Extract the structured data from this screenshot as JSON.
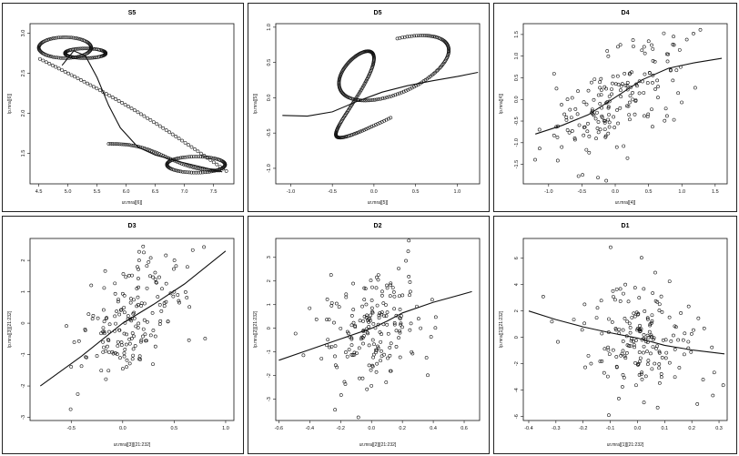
{
  "chart_data": [
    {
      "type": "scatter",
      "title": "S5",
      "xlabel": "ur.mra[[6]]",
      "ylabel": "lp.mra[[6]]",
      "xlim": [
        4.35,
        7.85
      ],
      "ylim": [
        1.12,
        3.12
      ],
      "xticks": [
        "4.5",
        "5.0",
        "5.5",
        "6.0",
        "6.5",
        "7.0",
        "7.5"
      ],
      "yticks": [
        "1.5",
        "2.0",
        "2.5",
        "3.0"
      ],
      "curve": "S5",
      "smoother": [
        [
          4.9,
          2.6
        ],
        [
          5.1,
          2.78
        ],
        [
          5.3,
          2.72
        ],
        [
          5.5,
          2.45
        ],
        [
          5.7,
          2.1
        ],
        [
          5.9,
          1.82
        ],
        [
          6.2,
          1.58
        ],
        [
          6.5,
          1.48
        ],
        [
          6.9,
          1.4
        ],
        [
          7.3,
          1.33
        ],
        [
          7.65,
          1.27
        ]
      ]
    },
    {
      "type": "scatter",
      "title": "D5",
      "xlabel": "ur.mra[[5]]",
      "ylabel": "lp.mra[[5]]",
      "xlim": [
        -1.18,
        1.27
      ],
      "ylim": [
        -1.22,
        1.05
      ],
      "xticks": [
        "-1.0",
        "-0.5",
        "0.0",
        "0.5",
        "1.0"
      ],
      "yticks": [
        "-1.0",
        "-0.5",
        "0.0",
        "0.5",
        "1.0"
      ],
      "curve": "D5",
      "smoother": [
        [
          -1.1,
          -0.25
        ],
        [
          -0.8,
          -0.26
        ],
        [
          -0.5,
          -0.2
        ],
        [
          -0.2,
          -0.05
        ],
        [
          0.1,
          0.08
        ],
        [
          0.4,
          0.17
        ],
        [
          0.7,
          0.24
        ],
        [
          1.0,
          0.3
        ],
        [
          1.25,
          0.36
        ]
      ]
    },
    {
      "type": "scatter",
      "title": "D4",
      "xlabel": "ur.mra[[4]]",
      "ylabel": "lp.mra[[4]]",
      "xlim": [
        -1.38,
        1.68
      ],
      "ylim": [
        -1.95,
        1.75
      ],
      "xticks": [
        "-1.0",
        "-0.5",
        "0.0",
        "0.5",
        "1.0",
        "1.5"
      ],
      "yticks": [
        "-1.5",
        "-1.0",
        "-0.5",
        "0.0",
        "0.5",
        "1.0",
        "1.5"
      ],
      "curve": "D4",
      "smoother": [
        [
          -1.2,
          -0.8
        ],
        [
          -0.8,
          -0.6
        ],
        [
          -0.4,
          -0.35
        ],
        [
          0.0,
          0.05
        ],
        [
          0.4,
          0.45
        ],
        [
          0.8,
          0.72
        ],
        [
          1.2,
          0.85
        ],
        [
          1.6,
          0.95
        ]
      ]
    },
    {
      "type": "scatter",
      "title": "D3",
      "xlabel": "ur.mra[[3]][21:232]",
      "ylabel": "lp.mra[[3]][21:232]",
      "xlim": [
        -0.9,
        1.08
      ],
      "ylim": [
        -3.1,
        2.7
      ],
      "xticks": [
        "-0.5",
        "0.0",
        "0.5",
        "1.0"
      ],
      "yticks": [
        "-3",
        "-2",
        "-1",
        "0",
        "1",
        "2"
      ],
      "curve": "D3",
      "smoother": [
        [
          -0.8,
          -2.0
        ],
        [
          -0.4,
          -1.05
        ],
        [
          0.0,
          0.0
        ],
        [
          0.3,
          0.6
        ],
        [
          0.6,
          1.25
        ],
        [
          1.0,
          2.3
        ]
      ]
    },
    {
      "type": "scatter",
      "title": "D2",
      "xlabel": "ur.mra[[2]][21:232]",
      "ylabel": "lp.mra[[2]][21:232]",
      "xlim": [
        -0.62,
        0.7
      ],
      "ylim": [
        -3.9,
        3.8
      ],
      "xticks": [
        "-0.6",
        "-0.4",
        "-0.2",
        "0.0",
        "0.2",
        "0.4",
        "0.6"
      ],
      "yticks": [
        "-3",
        "-2",
        "-1",
        "0",
        "1",
        "2",
        "3"
      ],
      "curve": "D2",
      "smoother": [
        [
          -0.6,
          -1.35
        ],
        [
          -0.4,
          -0.9
        ],
        [
          -0.2,
          -0.45
        ],
        [
          0.0,
          0.0
        ],
        [
          0.1,
          0.3
        ],
        [
          0.2,
          0.65
        ],
        [
          0.4,
          1.1
        ],
        [
          0.65,
          1.55
        ]
      ]
    },
    {
      "type": "scatter",
      "title": "D1",
      "xlabel": "ur.mra[[1]][21:232]",
      "ylabel": "lp.mra[[1]][21:232]",
      "xlim": [
        -0.42,
        0.33
      ],
      "ylim": [
        -6.3,
        7.5
      ],
      "xticks": [
        "-0.4",
        "-0.3",
        "-0.2",
        "-0.1",
        "0.0",
        "0.1",
        "0.2",
        "0.3"
      ],
      "yticks": [
        "-6",
        "-4",
        "-2",
        "0",
        "2",
        "4",
        "6"
      ],
      "curve": "D1",
      "smoother": [
        [
          -0.4,
          2.0
        ],
        [
          -0.3,
          1.35
        ],
        [
          -0.2,
          0.8
        ],
        [
          -0.1,
          0.35
        ],
        [
          0.0,
          -0.05
        ],
        [
          0.1,
          -0.6
        ],
        [
          0.2,
          -0.95
        ],
        [
          0.32,
          -1.25
        ]
      ]
    }
  ]
}
